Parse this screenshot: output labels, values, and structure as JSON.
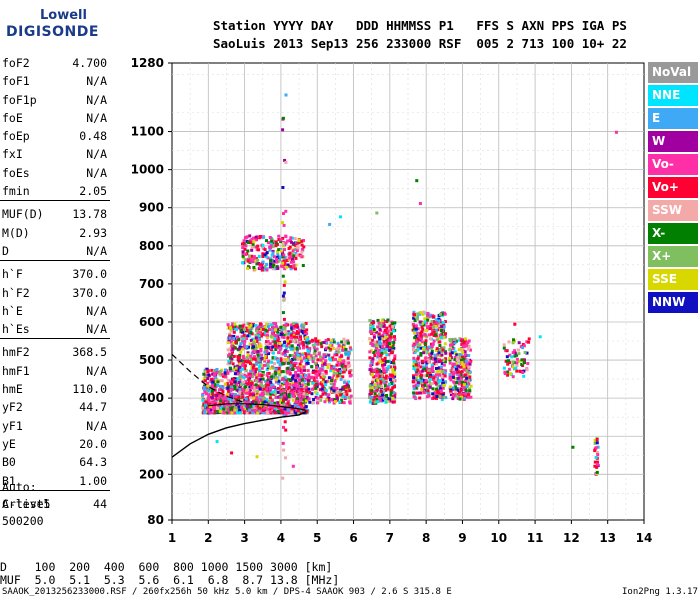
{
  "logo": {
    "line1": "Lowell",
    "line2": "DIGISONDE"
  },
  "header": {
    "line1": "Station YYYY DAY   DDD HHMMSS P1   FFS S AXN PPS IGA PS",
    "line2": "SaoLuis 2013 Sep13 256 233000 RSF  005 2 713 100 10+ 22"
  },
  "params": [
    {
      "k": "foF2",
      "v": "4.700"
    },
    {
      "k": "foF1",
      "v": "N/A"
    },
    {
      "k": "foF1p",
      "v": "N/A"
    },
    {
      "k": "foE",
      "v": "N/A"
    },
    {
      "k": "foEp",
      "v": "0.48"
    },
    {
      "k": "fxI",
      "v": "N/A"
    },
    {
      "k": "foEs",
      "v": "N/A"
    },
    {
      "k": "fmin",
      "v": "2.05"
    },
    {
      "k": "MUF(D)",
      "v": "13.78"
    },
    {
      "k": "M(D)",
      "v": "2.93"
    },
    {
      "k": "D",
      "v": "N/A"
    },
    {
      "k": "h`F",
      "v": "370.0"
    },
    {
      "k": "h`F2",
      "v": "370.0"
    },
    {
      "k": "h`E",
      "v": "N/A"
    },
    {
      "k": "h`Es",
      "v": "N/A"
    },
    {
      "k": "hmF2",
      "v": "368.5"
    },
    {
      "k": "hmF1",
      "v": "N/A"
    },
    {
      "k": "hmE",
      "v": "110.0"
    },
    {
      "k": "yF2",
      "v": "44.7"
    },
    {
      "k": "yF1",
      "v": "N/A"
    },
    {
      "k": "yE",
      "v": "20.0"
    },
    {
      "k": "B0",
      "v": "64.3"
    },
    {
      "k": "B1",
      "v": "1.00"
    },
    {
      "k": "C-level",
      "v": "44"
    }
  ],
  "auto": [
    "Auto:",
    "Artist5",
    "500200"
  ],
  "legend": [
    {
      "label": "NoVal",
      "color": "#999999"
    },
    {
      "label": "NNE",
      "color": "#00e5ff"
    },
    {
      "label": "E",
      "color": "#3fa9f5"
    },
    {
      "label": "W",
      "color": "#a000a0"
    },
    {
      "label": "Vo-",
      "color": "#ff2fa8"
    },
    {
      "label": "Vo+",
      "color": "#ff0033"
    },
    {
      "label": "SSW",
      "color": "#f4a9a9"
    },
    {
      "label": "X-",
      "color": "#007f00"
    },
    {
      "label": "X+",
      "color": "#7fbf5f"
    },
    {
      "label": "SSE",
      "color": "#d8d800"
    },
    {
      "label": "NNW",
      "color": "#1010c0"
    }
  ],
  "bottom": {
    "line1": "D    100  200  400  600  800 1000 1500 3000 [km]",
    "line2": "MUF  5.0  5.1  5.3  5.6  6.1  6.8  8.7 13.8 [MHz]"
  },
  "footer": {
    "left": "SAAOK_2013256233000.RSF / 260fx256h 50 kHz 5.0 km / DPS-4 SAAOK 903 / 2.6 S 315.8 E",
    "right": "Ion2Png 1.3.17"
  },
  "chart_data": {
    "type": "scatter",
    "xlim": [
      1,
      14
    ],
    "ylim": [
      80,
      1280
    ],
    "x_ticks": [
      1,
      2,
      3,
      4,
      5,
      6,
      7,
      8,
      9,
      10,
      11,
      12,
      13,
      14
    ],
    "y_ticks": [
      80,
      200,
      300,
      400,
      500,
      600,
      700,
      800,
      900,
      1000,
      1100,
      1280
    ],
    "grid": true,
    "legend_position": "right",
    "traces": {
      "profile_solid": [
        [
          1.0,
          245
        ],
        [
          1.5,
          280
        ],
        [
          2.0,
          305
        ],
        [
          2.5,
          322
        ],
        [
          3.0,
          333
        ],
        [
          3.5,
          342
        ],
        [
          4.0,
          350
        ],
        [
          4.5,
          356
        ],
        [
          4.7,
          365
        ]
      ],
      "profile_dashed": [
        [
          1.0,
          515
        ],
        [
          1.5,
          470
        ],
        [
          2.0,
          430
        ],
        [
          2.5,
          405
        ],
        [
          3.0,
          388
        ]
      ],
      "profile_peak": [
        [
          2.0,
          380
        ],
        [
          2.5,
          385
        ],
        [
          3.0,
          385
        ],
        [
          3.5,
          383
        ],
        [
          4.0,
          378
        ],
        [
          4.5,
          372
        ],
        [
          4.7,
          368
        ]
      ]
    },
    "echo_clusters": [
      {
        "x": [
          1.8,
          4.7
        ],
        "y": [
          365,
          480
        ]
      },
      {
        "x": [
          2.5,
          4.7
        ],
        "y": [
          480,
          600
        ]
      },
      {
        "x": [
          2.9,
          4.6
        ],
        "y": [
          740,
          830
        ]
      },
      {
        "x": [
          4.7,
          5.9
        ],
        "y": [
          390,
          560
        ]
      },
      {
        "x": [
          6.4,
          7.1
        ],
        "y": [
          390,
          610
        ]
      },
      {
        "x": [
          7.6,
          8.5
        ],
        "y": [
          400,
          630
        ]
      },
      {
        "x": [
          8.6,
          9.2
        ],
        "y": [
          400,
          560
        ]
      },
      {
        "x": [
          10.1,
          10.8
        ],
        "y": [
          460,
          560
        ]
      },
      {
        "x": [
          4.0,
          4.1
        ],
        "y": [
          150,
          1230
        ]
      },
      {
        "x": [
          12.6,
          12.7
        ],
        "y": [
          190,
          300
        ]
      }
    ]
  }
}
